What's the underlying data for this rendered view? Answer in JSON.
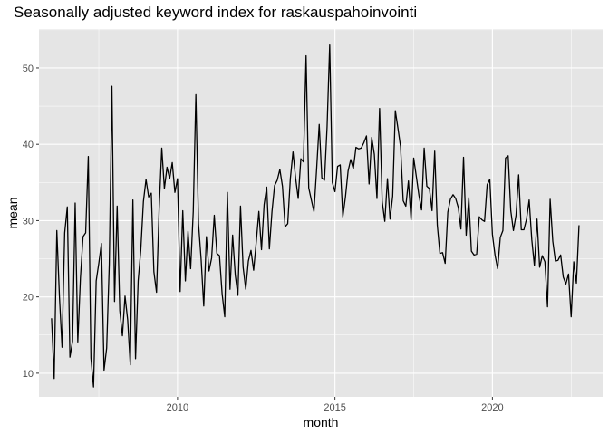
{
  "chart_data": {
    "type": "line",
    "title": "Seasonally adjusted keyword index for raskauspahoinvointi",
    "xlabel": "month",
    "ylabel": "mean",
    "xlim": [
      2005.6,
      2023.5
    ],
    "ylim": [
      6.9,
      55.1
    ],
    "x_ticks": [
      2010,
      2015,
      2020
    ],
    "y_ticks": [
      10,
      20,
      30,
      40,
      50
    ],
    "grid": true,
    "background": "#e5e5e5",
    "grid_color": "#ffffff",
    "line_color": "#000000",
    "series": [
      {
        "x": [
          2006.0,
          2006.083,
          2006.167,
          2006.25,
          2006.333,
          2006.417,
          2006.5,
          2006.583,
          2006.667,
          2006.75,
          2006.833,
          2006.917,
          2007.0,
          2007.083,
          2007.167,
          2007.25,
          2007.333,
          2007.417,
          2007.5,
          2007.583,
          2007.667,
          2007.75,
          2007.833,
          2007.917,
          2008.0,
          2008.083,
          2008.167,
          2008.25,
          2008.333,
          2008.417,
          2008.5,
          2008.583,
          2008.667,
          2008.75,
          2008.833,
          2008.917,
          2009.0,
          2009.083,
          2009.167,
          2009.25,
          2009.333,
          2009.417,
          2009.5,
          2009.583,
          2009.667,
          2009.75,
          2009.833,
          2009.917,
          2010.0,
          2010.083,
          2010.167,
          2010.25,
          2010.333,
          2010.417,
          2010.5,
          2010.583,
          2010.667,
          2010.75,
          2010.833,
          2010.917,
          2011.0,
          2011.083,
          2011.167,
          2011.25,
          2011.333,
          2011.417,
          2011.5,
          2011.583,
          2011.667,
          2011.75,
          2011.833,
          2011.917,
          2012.0,
          2012.083,
          2012.167,
          2012.25,
          2012.333,
          2012.417,
          2012.5,
          2012.583,
          2012.667,
          2012.75,
          2012.833,
          2012.917,
          2013.0,
          2013.083,
          2013.167,
          2013.25,
          2013.333,
          2013.417,
          2013.5,
          2013.583,
          2013.667,
          2013.75,
          2013.833,
          2013.917,
          2014.0,
          2014.083,
          2014.167,
          2014.25,
          2014.333,
          2014.417,
          2014.5,
          2014.583,
          2014.667,
          2014.75,
          2014.833,
          2014.917,
          2015.0,
          2015.083,
          2015.167,
          2015.25,
          2015.333,
          2015.417,
          2015.5,
          2015.583,
          2015.667,
          2015.75,
          2015.833,
          2015.917,
          2016.0,
          2016.083,
          2016.167,
          2016.25,
          2016.333,
          2016.417,
          2016.5,
          2016.583,
          2016.667,
          2016.75,
          2016.833,
          2016.917,
          2017.0,
          2017.083,
          2017.167,
          2017.25,
          2017.333,
          2017.417,
          2017.5,
          2017.583,
          2017.667,
          2017.75,
          2017.833,
          2017.917,
          2018.0,
          2018.083,
          2018.167,
          2018.25,
          2018.333,
          2018.417,
          2018.5,
          2018.583,
          2018.667,
          2018.75,
          2018.833,
          2018.917,
          2019.0,
          2019.083,
          2019.167,
          2019.25,
          2019.333,
          2019.417,
          2019.5,
          2019.583,
          2019.667,
          2019.75,
          2019.833,
          2019.917,
          2020.0,
          2020.083,
          2020.167,
          2020.25,
          2020.333,
          2020.417,
          2020.5,
          2020.583,
          2020.667,
          2020.75,
          2020.833,
          2020.917,
          2021.0,
          2021.083,
          2021.167,
          2021.25,
          2021.333,
          2021.417,
          2021.5,
          2021.583,
          2021.667,
          2021.75,
          2021.833,
          2021.917,
          2022.0,
          2022.083,
          2022.167,
          2022.25,
          2022.333,
          2022.417,
          2022.5,
          2022.583,
          2022.667,
          2022.75
        ],
        "y": [
          17.2,
          9.3,
          28.7,
          20.0,
          13.4,
          28.4,
          31.8,
          12.1,
          14.2,
          32.3,
          14.1,
          22.5,
          27.9,
          28.4,
          38.4,
          12.0,
          8.2,
          22.1,
          24.4,
          27.0,
          10.4,
          13.3,
          24.3,
          47.6,
          19.4,
          31.9,
          18.2,
          14.9,
          20.1,
          17.0,
          11.1,
          32.7,
          11.9,
          22.1,
          26.1,
          32.5,
          35.4,
          33.1,
          33.6,
          23.3,
          20.6,
          31.6,
          39.5,
          34.2,
          37.0,
          35.5,
          37.6,
          33.7,
          35.5,
          20.7,
          31.3,
          22.1,
          28.6,
          23.7,
          31.2,
          46.5,
          29.6,
          24.9,
          18.8,
          27.9,
          23.4,
          25.1,
          30.7,
          25.7,
          25.4,
          20.4,
          17.4,
          33.7,
          21.0,
          28.1,
          22.9,
          20.2,
          31.9,
          23.9,
          21.0,
          24.7,
          26.1,
          23.5,
          27.2,
          31.2,
          26.2,
          32.1,
          34.4,
          26.3,
          31.2,
          34.6,
          35.3,
          36.7,
          34.5,
          29.2,
          29.6,
          35.5,
          39.0,
          35.6,
          32.9,
          38.1,
          37.7,
          51.6,
          34.3,
          32.7,
          31.2,
          36.7,
          42.6,
          35.6,
          35.3,
          42.3,
          53.0,
          35.0,
          33.8,
          37.1,
          37.3,
          30.5,
          33.1,
          36.5,
          38.0,
          36.8,
          39.6,
          39.4,
          39.5,
          40.2,
          41.1,
          34.8,
          40.9,
          38.7,
          32.9,
          44.7,
          32.5,
          29.9,
          35.5,
          30.2,
          33.2,
          44.4,
          42.1,
          39.7,
          32.6,
          31.9,
          35.2,
          30.1,
          38.2,
          35.8,
          33.3,
          31.4,
          39.5,
          34.5,
          34.2,
          31.3,
          39.1,
          29.4,
          25.7,
          25.8,
          24.4,
          31.1,
          32.8,
          33.4,
          32.9,
          31.7,
          28.9,
          38.3,
          28.1,
          33.0,
          26.0,
          25.5,
          25.6,
          30.5,
          30.1,
          29.9,
          34.7,
          35.4,
          28.2,
          25.5,
          23.7,
          27.8,
          28.7,
          38.2,
          38.5,
          31.3,
          28.7,
          30.7,
          36.0,
          28.8,
          28.8,
          30.2,
          32.7,
          27.5,
          24.1,
          30.2,
          23.9,
          25.4,
          24.6,
          18.7,
          32.8,
          27.3,
          24.7,
          24.8,
          25.5,
          22.6,
          21.7,
          23.0,
          17.4,
          24.6,
          21.8,
          29.4
        ]
      }
    ]
  }
}
